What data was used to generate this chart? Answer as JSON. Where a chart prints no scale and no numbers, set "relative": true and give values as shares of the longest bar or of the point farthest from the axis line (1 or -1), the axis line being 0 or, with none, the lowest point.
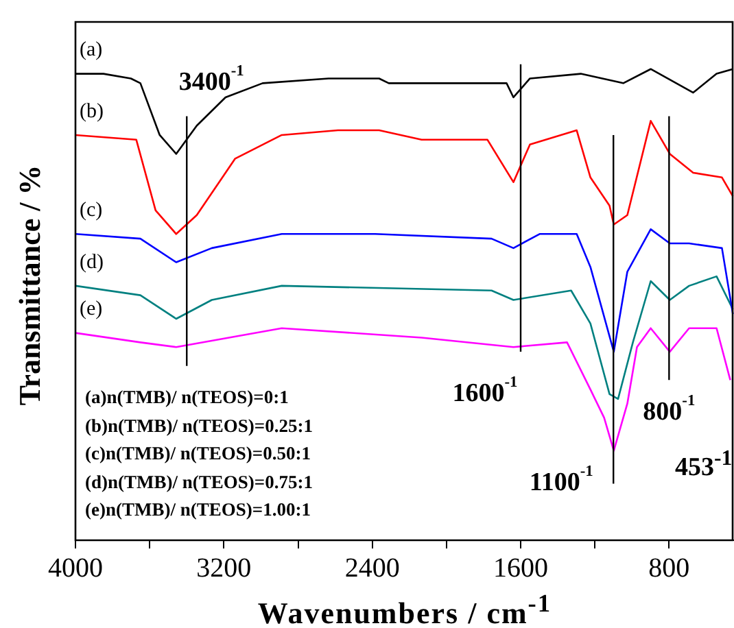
{
  "chart_data": {
    "type": "line",
    "relative": true,
    "xlabel": "Wavenumbers / cm$^{-1}$",
    "ylabel": "Transmittance / %",
    "xlim": [
      4000,
      450
    ],
    "xticks": [
      4000,
      {
        "value": 3600,
        "label": null
      },
      3200,
      {
        "value": 2800,
        "label": null
      },
      2400,
      {
        "value": 2000,
        "label": null
      },
      1600,
      {
        "value": 1200,
        "label": null
      },
      800
    ],
    "legend": false,
    "grid": false,
    "series": [
      {
        "name": "(a)",
        "color": "#000000",
        "x": [
          4000,
          3849,
          3701,
          3650,
          3546,
          3457,
          3346,
          3191,
          2991,
          2636,
          2363,
          2311,
          1883,
          1676,
          1639,
          1550,
          1276,
          1047,
          899,
          670,
          544,
          456
        ],
        "values": [
          0.99,
          0.99,
          0.98,
          0.97,
          0.86,
          0.82,
          0.88,
          0.94,
          0.97,
          0.98,
          0.98,
          0.97,
          0.97,
          0.97,
          0.94,
          0.98,
          0.99,
          0.97,
          1.0,
          0.95,
          0.99,
          1.0
        ]
      },
      {
        "name": "(b)",
        "color": "#ff0000",
        "x": [
          4000,
          3672,
          3568,
          3457,
          3346,
          3139,
          2888,
          2585,
          2363,
          2134,
          1779,
          1639,
          1550,
          1298,
          1224,
          1121,
          1098,
          1025,
          899,
          796,
          670,
          515,
          456
        ],
        "values": [
          0.86,
          0.85,
          0.7,
          0.65,
          0.69,
          0.81,
          0.86,
          0.87,
          0.87,
          0.85,
          0.85,
          0.76,
          0.84,
          0.87,
          0.77,
          0.71,
          0.67,
          0.69,
          0.89,
          0.82,
          0.78,
          0.77,
          0.73
        ]
      },
      {
        "name": "(c)",
        "color": "#0000ff",
        "x": [
          4000,
          3650,
          3457,
          3265,
          2888,
          2385,
          1757,
          1639,
          1498,
          1298,
          1224,
          1098,
          1025,
          899,
          796,
          692,
          515,
          456
        ],
        "values": [
          0.65,
          0.64,
          0.59,
          0.62,
          0.65,
          0.65,
          0.64,
          0.62,
          0.65,
          0.65,
          0.58,
          0.4,
          0.57,
          0.66,
          0.63,
          0.63,
          0.62,
          0.48
        ]
      },
      {
        "name": "(d)",
        "color": "#008080",
        "x": [
          4000,
          3650,
          3457,
          3265,
          2888,
          1757,
          1639,
          1328,
          1224,
          1121,
          1075,
          995,
          899,
          796,
          692,
          544,
          456
        ],
        "values": [
          0.54,
          0.52,
          0.47,
          0.51,
          0.54,
          0.53,
          0.51,
          0.53,
          0.46,
          0.31,
          0.3,
          0.42,
          0.55,
          0.51,
          0.54,
          0.56,
          0.49
        ]
      },
      {
        "name": "(e)",
        "color": "#ff00ff",
        "x": [
          4000,
          3650,
          3457,
          2888,
          2134,
          1639,
          1350,
          1224,
          1150,
          1098,
          1025,
          973,
          899,
          796,
          692,
          544,
          470
        ],
        "values": [
          0.44,
          0.42,
          0.41,
          0.45,
          0.43,
          0.41,
          0.42,
          0.32,
          0.26,
          0.19,
          0.29,
          0.41,
          0.45,
          0.4,
          0.45,
          0.45,
          0.34
        ]
      }
    ],
    "ref_lines": [
      {
        "axis": "x",
        "value": 3400,
        "label": "3400$^{-1}$"
      },
      {
        "axis": "x",
        "value": 1600,
        "label": "1600$^{-1}$"
      },
      {
        "axis": "x",
        "value": 1100,
        "label": "1100$^{-1}$"
      },
      {
        "axis": "x",
        "value": 800,
        "label": "800$^{-1}$"
      }
    ],
    "annotations": [
      "453$^{-1}$",
      "(a)n(TMB)/ n(TEOS)=0:1",
      "(b)n(TMB)/ n(TEOS)=0.25:1",
      "(c)n(TMB)/ n(TEOS)=0.50:1",
      "(d)n(TMB)/ n(TEOS)=0.75:1",
      "(e)n(TMB)/ n(TEOS)=1.00:1"
    ]
  }
}
